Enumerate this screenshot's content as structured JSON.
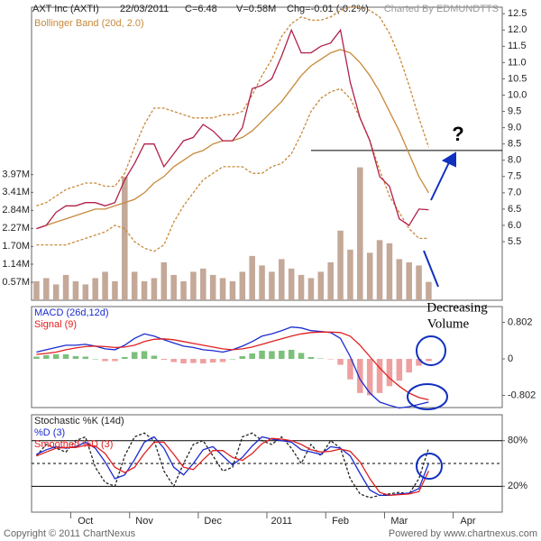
{
  "header": {
    "info": [
      "22/03/2011",
      "C=6.48",
      "V=0.58M",
      "Chg=-0.01 (-0.2%)"
    ],
    "credit": "Charted By EDMUNDTTS"
  },
  "footer": [
    "Copyright © 2011 ChartNexus",
    "Powered by www.chartnexus.com"
  ],
  "chart_data": [
    {
      "type": "line",
      "title": "AXT Inc (AXTI)",
      "ylim": [
        3.7,
        12.7
      ],
      "yticks": [
        5.5,
        {
          "value": 6,
          "label": "6.0"
        },
        6.5,
        {
          "value": 7,
          "label": "7.0"
        },
        7.5,
        {
          "value": 8,
          "label": "8.0"
        },
        8.5,
        {
          "value": 9,
          "label": "9.0"
        },
        9.5,
        {
          "value": 10,
          "label": "10.0"
        },
        10.5,
        {
          "value": 11,
          "label": "11.0"
        },
        11.5,
        {
          "value": 12,
          "label": "12.0"
        },
        12.5
      ],
      "y2lim": [
        0,
        9.26
      ],
      "y2ticks": [
        {
          "value": 0.57,
          "label": "0.57M"
        },
        {
          "value": 1.14,
          "label": "1.14M"
        },
        {
          "value": 1.7,
          "label": "1.70M"
        },
        {
          "value": 2.27,
          "label": "2.27M"
        },
        {
          "value": 2.84,
          "label": "2.84M"
        },
        {
          "value": 3.41,
          "label": "3.41M"
        },
        {
          "value": 3.97,
          "label": "3.97M"
        }
      ],
      "grid": false,
      "hline": 8.3,
      "annotations": [
        "?",
        "Decreasing",
        "Volume"
      ],
      "series": [
        {
          "axis": "y2",
          "type": "bar",
          "color": "#c4a898",
          "values": [
            0.6,
            0.7,
            0.5,
            0.8,
            0.6,
            0.5,
            0.7,
            0.9,
            0.6,
            3.9,
            0.9,
            0.6,
            0.7,
            1.2,
            0.8,
            0.6,
            0.9,
            1.0,
            0.8,
            0.7,
            0.6,
            0.9,
            1.4,
            1.1,
            0.9,
            1.3,
            1.0,
            0.8,
            0.7,
            0.9,
            1.2,
            2.2,
            1.6,
            4.2,
            1.5,
            1.9,
            1.8,
            1.3,
            1.2,
            1.1,
            0.58,
            null,
            null,
            null,
            null,
            null,
            null,
            null
          ]
        },
        {
          "color": "#c8893a",
          "dash": true,
          "values": [
            6.6,
            6.7,
            6.9,
            7.1,
            7.2,
            7.3,
            7.3,
            7.2,
            7.2,
            7.6,
            8.4,
            9.1,
            9.6,
            9.6,
            9.5,
            9.4,
            9.3,
            9.3,
            9.3,
            9.4,
            9.4,
            9.5,
            10.0,
            10.6,
            11.1,
            11.8,
            12.2,
            12.4,
            12.3,
            12.3,
            12.4,
            12.6,
            12.7,
            12.7,
            12.6,
            12.4,
            11.9,
            11.2,
            10.3,
            9.3,
            8.4,
            null,
            null,
            null,
            null,
            null,
            null,
            null
          ]
        },
        {
          "name": "Bollinger Band (20d, 2.0)",
          "color": "#c8893a",
          "values": [
            5.9,
            6.0,
            6.1,
            6.2,
            6.3,
            6.4,
            6.5,
            6.5,
            6.6,
            6.7,
            6.8,
            7.0,
            7.3,
            7.5,
            7.8,
            8.0,
            8.2,
            8.3,
            8.5,
            8.6,
            8.6,
            8.7,
            8.9,
            9.2,
            9.5,
            9.8,
            10.2,
            10.6,
            10.9,
            11.1,
            11.3,
            11.4,
            11.3,
            11.0,
            10.6,
            10.1,
            9.5,
            8.9,
            8.2,
            7.5,
            7.0,
            null,
            null,
            null,
            null,
            null,
            null,
            null
          ]
        },
        {
          "color": "#c8893a",
          "dash": true,
          "values": [
            5.4,
            5.4,
            5.4,
            5.4,
            5.5,
            5.6,
            5.7,
            5.8,
            6.0,
            5.9,
            5.5,
            5.3,
            5.2,
            5.4,
            6.1,
            6.6,
            7.0,
            7.4,
            7.6,
            7.8,
            7.8,
            7.8,
            7.6,
            7.6,
            7.8,
            7.9,
            8.2,
            8.8,
            9.5,
            9.9,
            10.1,
            10.2,
            9.9,
            9.3,
            8.6,
            7.7,
            6.9,
            6.4,
            5.9,
            5.6,
            5.6,
            null,
            null,
            null,
            null,
            null,
            null,
            null
          ]
        },
        {
          "color": "#b0204a",
          "values": [
            5.9,
            6.0,
            6.4,
            6.6,
            6.6,
            6.7,
            6.7,
            6.6,
            6.7,
            7.4,
            7.9,
            8.5,
            8.5,
            7.8,
            8.2,
            8.6,
            8.7,
            9.1,
            8.9,
            8.6,
            8.6,
            9.0,
            10.2,
            10.3,
            10.5,
            11.2,
            12.0,
            11.3,
            11.3,
            11.5,
            11.6,
            12.0,
            10.4,
            9.3,
            8.6,
            7.5,
            7.2,
            6.2,
            6.0,
            6.5,
            6.48,
            null,
            null,
            null,
            null,
            null,
            null,
            null
          ]
        }
      ]
    },
    {
      "type": "line",
      "ylim": [
        -1.07,
        1.15
      ],
      "yticks": [
        0.802,
        0,
        -0.802
      ],
      "grid": false,
      "series": [
        {
          "type": "bar",
          "color": "#7cc07c",
          "negative_color": "#eea0a0",
          "values": [
            0.05,
            0.08,
            0.1,
            0.1,
            0.06,
            0.05,
            0,
            -0.05,
            -0.05,
            0.04,
            0.15,
            0.17,
            0.07,
            -0.02,
            -0.07,
            -0.1,
            -0.09,
            -0.1,
            -0.08,
            -0.07,
            0,
            0.06,
            0.12,
            0.18,
            0.17,
            0.18,
            0.2,
            0.13,
            0.04,
            0.01,
            -0.01,
            -0.13,
            -0.45,
            -0.75,
            -0.8,
            -0.75,
            -0.6,
            -0.48,
            -0.3,
            -0.15,
            -0.05,
            null,
            null,
            null,
            null,
            null,
            null,
            null
          ]
        },
        {
          "name": "MACD (26d,12d)",
          "color": "#1a2bd0",
          "values": [
            0.15,
            0.2,
            0.25,
            0.3,
            0.3,
            0.32,
            0.28,
            0.22,
            0.2,
            0.3,
            0.45,
            0.55,
            0.5,
            0.42,
            0.35,
            0.28,
            0.25,
            0.2,
            0.18,
            0.15,
            0.2,
            0.28,
            0.38,
            0.5,
            0.55,
            0.62,
            0.7,
            0.68,
            0.62,
            0.6,
            0.58,
            0.45,
            0.05,
            -0.45,
            -0.75,
            -0.95,
            -1.02,
            -1.08,
            -1.05,
            -1.0,
            -0.95,
            null,
            null,
            null,
            null,
            null,
            null,
            null
          ]
        },
        {
          "name": "Signal (9)",
          "color": "#e02020",
          "values": [
            0.1,
            0.12,
            0.15,
            0.2,
            0.24,
            0.27,
            0.28,
            0.27,
            0.25,
            0.26,
            0.3,
            0.38,
            0.43,
            0.44,
            0.42,
            0.38,
            0.34,
            0.3,
            0.26,
            0.22,
            0.2,
            0.22,
            0.26,
            0.32,
            0.38,
            0.44,
            0.5,
            0.55,
            0.58,
            0.59,
            0.59,
            0.58,
            0.5,
            0.3,
            0.05,
            -0.2,
            -0.42,
            -0.6,
            -0.75,
            -0.85,
            -0.9,
            null,
            null,
            null,
            null,
            null,
            null,
            null
          ]
        }
      ]
    },
    {
      "type": "line",
      "ylim": [
        -14,
        114
      ],
      "yticks": [
        {
          "value": 80,
          "label": "80%"
        },
        {
          "value": 20,
          "label": "20%"
        }
      ],
      "grid": true,
      "hline": 50,
      "categories": [
        null,
        null,
        null,
        null,
        null,
        "Oct",
        null,
        null,
        null,
        null,
        null,
        "Nov",
        null,
        null,
        null,
        null,
        null,
        null,
        "Dec",
        null,
        null,
        null,
        null,
        null,
        null,
        "2011",
        null,
        null,
        null,
        null,
        null,
        "Feb",
        null,
        null,
        null,
        null,
        null,
        "Mar",
        null,
        null,
        null,
        null,
        null,
        null,
        "Apr",
        null,
        null,
        null
      ],
      "series": [
        {
          "name": "Stochastic %K (14d)",
          "color": "#222222",
          "dash": true,
          "values": [
            60,
            75,
            70,
            65,
            80,
            85,
            45,
            25,
            20,
            60,
            85,
            90,
            80,
            40,
            20,
            50,
            75,
            80,
            60,
            40,
            45,
            85,
            90,
            80,
            75,
            85,
            70,
            50,
            75,
            60,
            80,
            70,
            30,
            10,
            5,
            8,
            10,
            12,
            10,
            30,
            70,
            null,
            null,
            null,
            null,
            null,
            null,
            null
          ]
        },
        {
          "name": "%D (3)",
          "color": "#1a2bd0",
          "values": [
            62,
            68,
            72,
            70,
            72,
            78,
            70,
            52,
            30,
            35,
            55,
            78,
            85,
            70,
            45,
            35,
            50,
            68,
            72,
            60,
            48,
            58,
            73,
            85,
            82,
            80,
            78,
            68,
            65,
            62,
            72,
            70,
            60,
            37,
            15,
            8,
            8,
            10,
            11,
            17,
            50,
            null,
            null,
            null,
            null,
            null,
            null,
            null
          ]
        },
        {
          "name": "Smoothed %D (3)",
          "color": "#e02020",
          "values": [
            60,
            65,
            70,
            71,
            71,
            74,
            73,
            63,
            45,
            38,
            45,
            63,
            78,
            78,
            62,
            45,
            42,
            55,
            67,
            67,
            58,
            54,
            63,
            76,
            83,
            82,
            80,
            75,
            68,
            65,
            66,
            69,
            66,
            52,
            30,
            12,
            8,
            9,
            10,
            13,
            40,
            null,
            null,
            null,
            null,
            null,
            null,
            null
          ]
        }
      ]
    }
  ]
}
